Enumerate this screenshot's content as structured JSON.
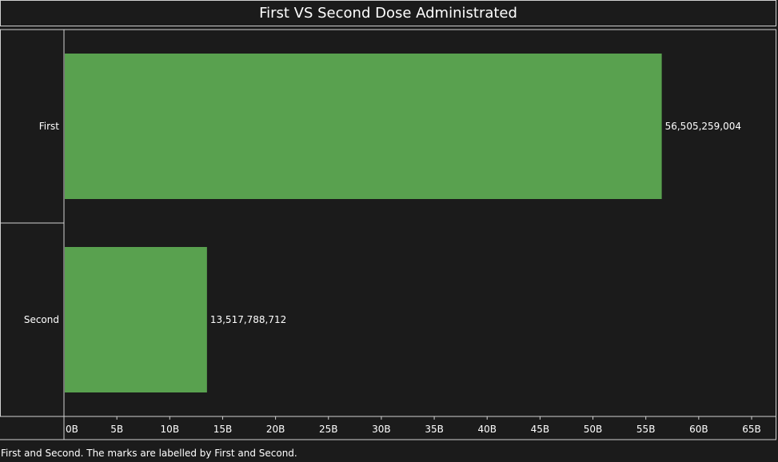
{
  "chart_data": {
    "type": "bar",
    "orientation": "horizontal",
    "title": "First VS Second Dose Administrated",
    "categories": [
      "First",
      "Second"
    ],
    "values": [
      56505259004,
      13517788712
    ],
    "value_labels": [
      "56,505,259,004",
      "13,517,788,712"
    ],
    "xlim": [
      0,
      65000000000
    ],
    "x_ticks": [
      0,
      5000000000,
      10000000000,
      15000000000,
      20000000000,
      25000000000,
      30000000000,
      35000000000,
      40000000000,
      45000000000,
      50000000000,
      55000000000,
      60000000000,
      65000000000
    ],
    "x_tick_labels": [
      "0B",
      "5B",
      "10B",
      "15B",
      "20B",
      "25B",
      "30B",
      "35B",
      "40B",
      "45B",
      "50B",
      "55B",
      "60B",
      "65B"
    ],
    "xlabel": "",
    "ylabel": "",
    "grid": false,
    "bar_color": "#59a14f",
    "background_color": "#1b1b1b",
    "text_color": "#ffffff"
  },
  "caption": "First and Second.  The marks are labelled by First and Second."
}
